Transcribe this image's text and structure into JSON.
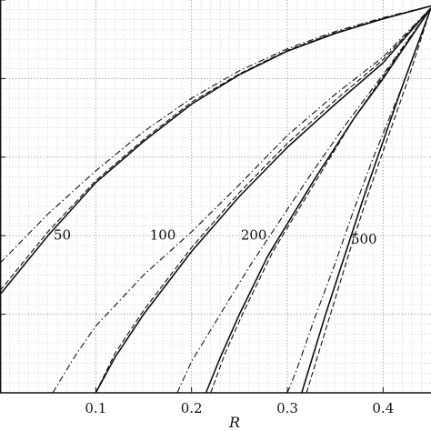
{
  "chart_data": {
    "type": "line",
    "xlabel": "R",
    "xlim": [
      0,
      0.45
    ],
    "x_ticks": [
      "0.1",
      "0.2",
      "0.3",
      "0.4"
    ],
    "x_tick_values": [
      0.1,
      0.2,
      0.3,
      0.4
    ],
    "ylim": [
      0,
      1
    ],
    "y_major_ticks": [
      0,
      0.2,
      0.4,
      0.6,
      0.8,
      1.0
    ],
    "grid": true,
    "legend": "none",
    "curve_labels": [
      {
        "text": "50",
        "x": 0.065,
        "y": 0.39
      },
      {
        "text": "100",
        "x": 0.17,
        "y": 0.39
      },
      {
        "text": "200",
        "x": 0.265,
        "y": 0.39
      },
      {
        "text": "500",
        "x": 0.38,
        "y": 0.38
      }
    ],
    "series": [
      {
        "style": "solid",
        "points": [
          [
            0.0,
            0.25
          ],
          [
            0.05,
            0.4
          ],
          [
            0.1,
            0.535
          ],
          [
            0.15,
            0.64
          ],
          [
            0.2,
            0.735
          ],
          [
            0.25,
            0.81
          ],
          [
            0.3,
            0.87
          ],
          [
            0.35,
            0.915
          ],
          [
            0.4,
            0.952
          ],
          [
            0.45,
            0.985
          ]
        ]
      },
      {
        "style": "dashed",
        "points": [
          [
            0.0,
            0.26
          ],
          [
            0.05,
            0.41
          ],
          [
            0.1,
            0.54
          ],
          [
            0.15,
            0.645
          ],
          [
            0.2,
            0.74
          ],
          [
            0.25,
            0.812
          ],
          [
            0.3,
            0.872
          ],
          [
            0.35,
            0.917
          ],
          [
            0.4,
            0.953
          ],
          [
            0.45,
            0.985
          ]
        ]
      },
      {
        "style": "dashdot",
        "points": [
          [
            0.0,
            0.33
          ],
          [
            0.05,
            0.455
          ],
          [
            0.1,
            0.565
          ],
          [
            0.15,
            0.665
          ],
          [
            0.2,
            0.75
          ],
          [
            0.25,
            0.82
          ],
          [
            0.3,
            0.876
          ],
          [
            0.35,
            0.92
          ],
          [
            0.4,
            0.955
          ],
          [
            0.45,
            0.985
          ]
        ]
      },
      {
        "style": "solid",
        "points": [
          [
            0.1,
            0.0
          ],
          [
            0.12,
            0.09
          ],
          [
            0.15,
            0.2
          ],
          [
            0.2,
            0.36
          ],
          [
            0.25,
            0.5
          ],
          [
            0.3,
            0.625
          ],
          [
            0.35,
            0.735
          ],
          [
            0.4,
            0.84
          ],
          [
            0.45,
            0.98
          ]
        ]
      },
      {
        "style": "dashed",
        "points": [
          [
            0.1,
            0.0
          ],
          [
            0.12,
            0.1
          ],
          [
            0.15,
            0.21
          ],
          [
            0.2,
            0.37
          ],
          [
            0.25,
            0.51
          ],
          [
            0.3,
            0.635
          ],
          [
            0.35,
            0.745
          ],
          [
            0.4,
            0.848
          ],
          [
            0.45,
            0.98
          ]
        ]
      },
      {
        "style": "dashdot",
        "points": [
          [
            0.055,
            0.0
          ],
          [
            0.08,
            0.1
          ],
          [
            0.1,
            0.17
          ],
          [
            0.15,
            0.3
          ],
          [
            0.2,
            0.41
          ],
          [
            0.25,
            0.53
          ],
          [
            0.3,
            0.655
          ],
          [
            0.35,
            0.76
          ],
          [
            0.4,
            0.855
          ],
          [
            0.45,
            0.98
          ]
        ]
      },
      {
        "style": "solid",
        "points": [
          [
            0.215,
            0.0
          ],
          [
            0.23,
            0.09
          ],
          [
            0.25,
            0.2
          ],
          [
            0.28,
            0.35
          ],
          [
            0.3,
            0.43
          ],
          [
            0.33,
            0.55
          ],
          [
            0.37,
            0.7
          ],
          [
            0.4,
            0.8
          ],
          [
            0.45,
            0.98
          ]
        ]
      },
      {
        "style": "dashed",
        "points": [
          [
            0.22,
            0.0
          ],
          [
            0.235,
            0.1
          ],
          [
            0.255,
            0.21
          ],
          [
            0.285,
            0.36
          ],
          [
            0.305,
            0.44
          ],
          [
            0.335,
            0.56
          ],
          [
            0.37,
            0.7
          ],
          [
            0.4,
            0.805
          ],
          [
            0.45,
            0.98
          ]
        ]
      },
      {
        "style": "dashdot",
        "points": [
          [
            0.185,
            0.0
          ],
          [
            0.2,
            0.08
          ],
          [
            0.23,
            0.2
          ],
          [
            0.26,
            0.32
          ],
          [
            0.29,
            0.43
          ],
          [
            0.32,
            0.54
          ],
          [
            0.36,
            0.68
          ],
          [
            0.4,
            0.81
          ],
          [
            0.45,
            0.98
          ]
        ]
      },
      {
        "style": "solid",
        "points": [
          [
            0.315,
            0.0
          ],
          [
            0.325,
            0.08
          ],
          [
            0.34,
            0.2
          ],
          [
            0.36,
            0.35
          ],
          [
            0.38,
            0.5
          ],
          [
            0.4,
            0.64
          ],
          [
            0.42,
            0.78
          ],
          [
            0.45,
            0.98
          ]
        ]
      },
      {
        "style": "dashed",
        "points": [
          [
            0.32,
            0.0
          ],
          [
            0.33,
            0.08
          ],
          [
            0.345,
            0.2
          ],
          [
            0.365,
            0.36
          ],
          [
            0.385,
            0.51
          ],
          [
            0.405,
            0.65
          ],
          [
            0.425,
            0.79
          ],
          [
            0.45,
            0.98
          ]
        ]
      },
      {
        "style": "dashdot",
        "points": [
          [
            0.3,
            0.0
          ],
          [
            0.31,
            0.06
          ],
          [
            0.33,
            0.2
          ],
          [
            0.35,
            0.33
          ],
          [
            0.37,
            0.47
          ],
          [
            0.39,
            0.6
          ],
          [
            0.42,
            0.78
          ],
          [
            0.45,
            0.98
          ]
        ]
      }
    ]
  }
}
